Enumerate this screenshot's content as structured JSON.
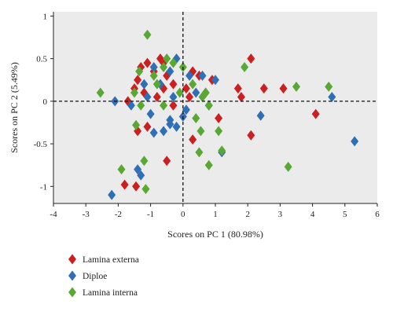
{
  "chart_data": {
    "type": "scatter",
    "title": "",
    "xlabel": "Scores on PC 1 (80.98%)",
    "ylabel": "Scores on PC 2 (5.49%)",
    "xlim": [
      -4,
      6
    ],
    "ylim": [
      -1.2,
      1.05
    ],
    "x_ticks": [
      "-4",
      "-3",
      "-2",
      "-1",
      "0",
      "1",
      "2",
      "3",
      "4",
      "5",
      "6"
    ],
    "y_ticks": [
      "1",
      "0.5",
      "0",
      "-0.5",
      "-1"
    ],
    "reference_lines": {
      "x": 0,
      "y": 0,
      "style": "dashed"
    },
    "grid": false,
    "legend_position": "bottom-left",
    "series": [
      {
        "name": "Lamina externa",
        "color": "#cc1f1f",
        "marker": "diamond",
        "points": [
          [
            -1.4,
            0.25
          ],
          [
            -1.3,
            0.4
          ],
          [
            -1.1,
            0.45
          ],
          [
            -0.9,
            0.35
          ],
          [
            -0.7,
            0.5
          ],
          [
            -0.6,
            0.45
          ],
          [
            -0.5,
            0.3
          ],
          [
            -0.3,
            0.2
          ],
          [
            0.3,
            0.35
          ],
          [
            0.5,
            0.3
          ],
          [
            0.7,
            0.1
          ],
          [
            0.9,
            0.25
          ],
          [
            -1.5,
            0.15
          ],
          [
            -1.2,
            0.1
          ],
          [
            -0.8,
            0.05
          ],
          [
            -0.3,
            -0.05
          ],
          [
            0.1,
            0.15
          ],
          [
            1.1,
            -0.2
          ],
          [
            1.7,
            0.15
          ],
          [
            1.8,
            0.05
          ],
          [
            2.1,
            0.5
          ],
          [
            2.5,
            0.15
          ],
          [
            3.1,
            0.15
          ],
          [
            2.1,
            -0.4
          ],
          [
            0.3,
            -0.45
          ],
          [
            -0.5,
            -0.7
          ],
          [
            -1.4,
            -0.35
          ],
          [
            -1.8,
            -0.98
          ],
          [
            -1.45,
            -1.0
          ],
          [
            4.1,
            -0.15
          ],
          [
            -1.7,
            0.0
          ],
          [
            -1.1,
            -0.3
          ],
          [
            0.2,
            0.05
          ],
          [
            -0.6,
            0.15
          ]
        ]
      },
      {
        "name": "Diploe",
        "color": "#2f6fb5",
        "marker": "diamond",
        "points": [
          [
            -2.2,
            -1.1
          ],
          [
            -1.4,
            -0.8
          ],
          [
            -1.3,
            -0.87
          ],
          [
            -0.9,
            -0.37
          ],
          [
            -0.6,
            -0.35
          ],
          [
            -0.4,
            -0.27
          ],
          [
            -0.2,
            -0.3
          ],
          [
            0.1,
            -0.1
          ],
          [
            0.8,
            -0.05
          ],
          [
            1.0,
            0.25
          ],
          [
            0.6,
            0.3
          ],
          [
            -0.2,
            0.5
          ],
          [
            -0.4,
            0.35
          ],
          [
            -0.9,
            0.4
          ],
          [
            -1.2,
            0.2
          ],
          [
            -1.1,
            0.05
          ],
          [
            -1.6,
            -0.05
          ],
          [
            -2.1,
            0.0
          ],
          [
            -1.0,
            -0.15
          ],
          [
            -0.4,
            -0.22
          ],
          [
            0.0,
            -0.18
          ],
          [
            2.4,
            -0.17
          ],
          [
            4.6,
            0.05
          ],
          [
            5.3,
            -0.47
          ],
          [
            1.2,
            -0.6
          ],
          [
            -0.7,
            0.2
          ],
          [
            0.2,
            0.3
          ],
          [
            0.4,
            0.1
          ],
          [
            -0.3,
            0.05
          ]
        ]
      },
      {
        "name": "Lamina interna",
        "color": "#5aa834",
        "marker": "diamond",
        "points": [
          [
            -2.55,
            0.1
          ],
          [
            -1.9,
            -0.8
          ],
          [
            -1.45,
            -0.28
          ],
          [
            -1.2,
            -0.7
          ],
          [
            -1.15,
            -1.03
          ],
          [
            -1.1,
            0.78
          ],
          [
            -0.8,
            0.2
          ],
          [
            -0.6,
            0.4
          ],
          [
            -0.5,
            0.5
          ],
          [
            -0.3,
            0.45
          ],
          [
            0.0,
            0.4
          ],
          [
            -0.1,
            0.1
          ],
          [
            0.3,
            0.2
          ],
          [
            0.6,
            0.05
          ],
          [
            0.8,
            -0.05
          ],
          [
            1.1,
            -0.35
          ],
          [
            0.5,
            -0.6
          ],
          [
            0.8,
            -0.75
          ],
          [
            1.2,
            -0.58
          ],
          [
            1.9,
            0.4
          ],
          [
            3.5,
            0.17
          ],
          [
            4.5,
            0.17
          ],
          [
            3.25,
            -0.77
          ],
          [
            -1.5,
            0.1
          ],
          [
            -1.3,
            -0.05
          ],
          [
            -0.9,
            0.3
          ],
          [
            -0.6,
            -0.05
          ],
          [
            0.4,
            -0.2
          ],
          [
            0.7,
            0.1
          ],
          [
            -1.35,
            0.35
          ],
          [
            0.55,
            -0.35
          ]
        ]
      }
    ]
  }
}
